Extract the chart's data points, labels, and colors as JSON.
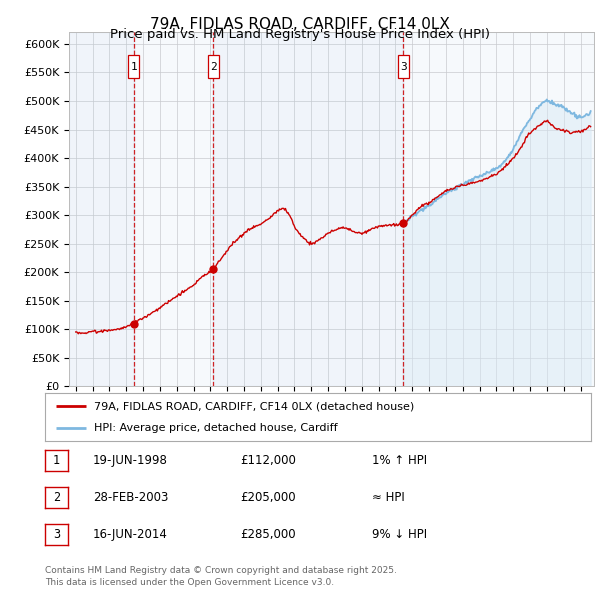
{
  "title": "79A, FIDLAS ROAD, CARDIFF, CF14 0LX",
  "subtitle": "Price paid vs. HM Land Registry's House Price Index (HPI)",
  "ylim": [
    0,
    620000
  ],
  "yticks": [
    0,
    50000,
    100000,
    150000,
    200000,
    250000,
    300000,
    350000,
    400000,
    450000,
    500000,
    550000,
    600000
  ],
  "ytick_labels": [
    "£0",
    "£50K",
    "£100K",
    "£150K",
    "£200K",
    "£250K",
    "£300K",
    "£350K",
    "£400K",
    "£450K",
    "£500K",
    "£550K",
    "£600K"
  ],
  "line_color_red": "#cc0000",
  "line_color_blue": "#7eb8e0",
  "fill_color_blue": "#d6e8f5",
  "vline_color": "#cc0000",
  "background_color": "#ffffff",
  "grid_color": "#cccccc",
  "title_fontsize": 11,
  "subtitle_fontsize": 9.5,
  "transactions": [
    {
      "num": 1,
      "date": "19-JUN-1998",
      "date_num": 1998.46,
      "price": 112000,
      "hpi_rel": "1% ↑ HPI"
    },
    {
      "num": 2,
      "date": "28-FEB-2003",
      "date_num": 2003.16,
      "price": 205000,
      "hpi_rel": "≈ HPI"
    },
    {
      "num": 3,
      "date": "16-JUN-2014",
      "date_num": 2014.46,
      "price": 285000,
      "hpi_rel": "9% ↓ HPI"
    }
  ],
  "legend_entries": [
    "79A, FIDLAS ROAD, CARDIFF, CF14 0LX (detached house)",
    "HPI: Average price, detached house, Cardiff"
  ],
  "footer_text": "Contains HM Land Registry data © Crown copyright and database right 2025.\nThis data is licensed under the Open Government Licence v3.0.",
  "xlim_start": 1994.6,
  "xlim_end": 2025.8,
  "hpi_start_year": 2014.46,
  "shade_ranges": [
    [
      1994.6,
      1998.46
    ],
    [
      1998.46,
      2003.16
    ],
    [
      2003.16,
      2014.46
    ],
    [
      2014.46,
      2025.8
    ]
  ]
}
